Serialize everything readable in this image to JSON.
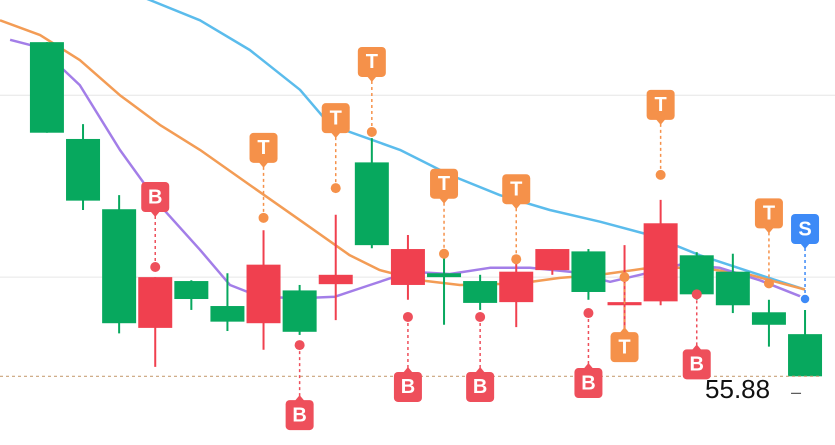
{
  "chart_data": {
    "type": "candlestick",
    "xlim": [
      -1.3,
      21.83
    ],
    "ylim": [
      55.0,
      60.7
    ],
    "yticks": [
      57.15,
      59.48
    ],
    "grid": true,
    "up_color": "#f0404f",
    "down_color": "#07a85e",
    "open": [
      60.16,
      58.92,
      58.02,
      56.5,
      57.1,
      56.78,
      56.56,
      56.98,
      57.06,
      58.62,
      57.05,
      57.2,
      57.1,
      56.83,
      57.24,
      57.48,
      56.79,
      56.84,
      57.43,
      57.22,
      56.7,
      56.42
    ],
    "close": [
      59.0,
      58.13,
      56.56,
      57.15,
      56.87,
      56.58,
      57.31,
      56.45,
      57.18,
      57.56,
      57.51,
      57.15,
      56.82,
      57.22,
      57.51,
      56.96,
      56.83,
      57.84,
      56.93,
      56.79,
      56.54,
      55.88
    ],
    "high": [
      60.16,
      59.11,
      58.2,
      57.15,
      57.11,
      57.2,
      57.75,
      57.05,
      57.95,
      58.93,
      57.69,
      57.41,
      57.18,
      57.32,
      57.51,
      57.51,
      57.56,
      58.14,
      57.47,
      57.45,
      56.86,
      56.73
    ],
    "low": [
      59.0,
      58.01,
      56.43,
      56.0,
      56.73,
      56.46,
      56.22,
      56.41,
      56.6,
      57.52,
      56.86,
      56.54,
      56.73,
      56.51,
      57.18,
      56.86,
      56.43,
      56.79,
      56.86,
      56.69,
      56.26,
      55.88
    ],
    "lines": [
      {
        "color": "#5bbcec",
        "x": [
          1.47,
          2.85,
          4.24,
          5.62,
          7.01,
          7.84,
          9.78,
          11.16,
          12.55,
          13.93,
          15.32,
          16.7,
          18.09,
          19.47,
          21.0
        ],
        "values": [
          60.96,
          60.7,
          60.44,
          60.06,
          59.55,
          59.1,
          58.78,
          58.46,
          58.2,
          58.01,
          57.86,
          57.69,
          57.43,
          57.22,
          56.99
        ]
      },
      {
        "color": "#f39c55",
        "x": [
          -1.3,
          -0.19,
          0.91,
          2.02,
          3.13,
          4.24,
          5.62,
          7.01,
          8.39,
          9.22,
          10.33,
          11.44,
          13.1,
          14.21,
          15.32,
          16.7,
          18.09,
          19.47,
          21.0
        ],
        "values": [
          60.44,
          60.25,
          59.93,
          59.48,
          59.1,
          58.78,
          58.33,
          57.88,
          57.43,
          57.24,
          57.11,
          57.05,
          57.07,
          57.14,
          57.18,
          57.27,
          57.27,
          57.18,
          56.99
        ]
      },
      {
        "color": "#a37ee8",
        "x": [
          -1.02,
          -0.19,
          0.91,
          2.02,
          3.13,
          4.24,
          5.07,
          5.9,
          7.01,
          7.98,
          8.95,
          10.06,
          11.16,
          12.27,
          13.38,
          14.49,
          15.6,
          16.43,
          17.53,
          18.64,
          19.75,
          21.0
        ],
        "values": [
          60.19,
          60.09,
          59.61,
          58.78,
          58.07,
          57.5,
          57.05,
          56.9,
          56.88,
          56.9,
          57.05,
          57.22,
          57.19,
          57.27,
          57.27,
          57.22,
          57.09,
          57.18,
          57.31,
          57.27,
          57.11,
          56.88
        ]
      }
    ],
    "marker_colors": {
      "T": "#f5914a",
      "B": "#ee4f5b",
      "S": "#3d8af7"
    },
    "markers": [
      {
        "label": "B",
        "index": 3,
        "value": 57.28
      },
      {
        "label": "T",
        "index": 6,
        "value": 57.91
      },
      {
        "label": "B",
        "index": 7,
        "value": 56.28
      },
      {
        "label": "T",
        "index": 8,
        "value": 58.29
      },
      {
        "label": "T",
        "index": 9,
        "value": 59.01
      },
      {
        "label": "B",
        "index": 10,
        "value": 56.64
      },
      {
        "label": "T",
        "index": 11,
        "value": 57.45
      },
      {
        "label": "B",
        "index": 12,
        "value": 56.64
      },
      {
        "label": "T",
        "index": 13,
        "value": 57.38
      },
      {
        "label": "B",
        "index": 15,
        "value": 56.69
      },
      {
        "label": "T",
        "index": 16,
        "value": 57.15
      },
      {
        "label": "T",
        "index": 17,
        "value": 58.46
      },
      {
        "label": "B",
        "index": 18,
        "value": 56.93
      },
      {
        "label": "T",
        "index": 20,
        "value": 57.07
      },
      {
        "label": "S",
        "index": 21,
        "value": 56.87
      }
    ]
  }
}
